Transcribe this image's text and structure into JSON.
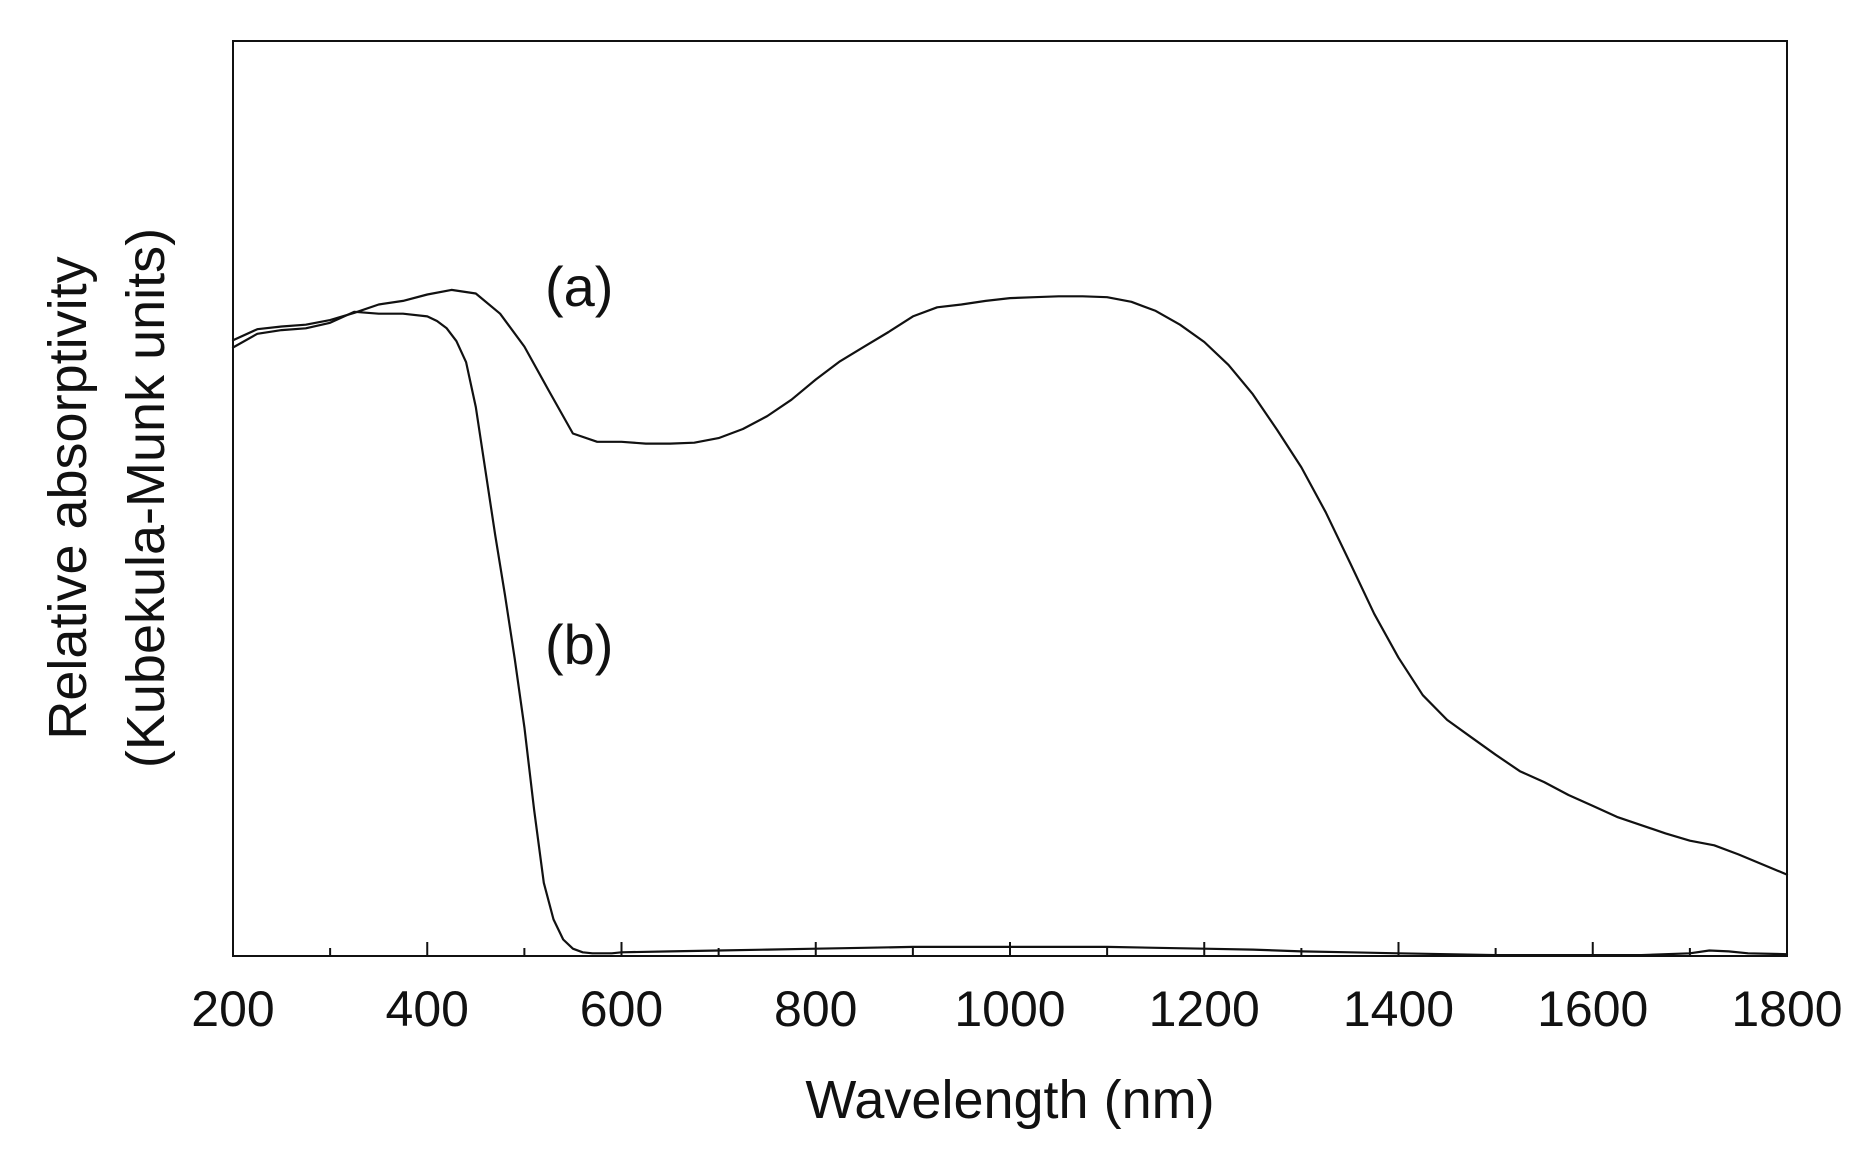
{
  "chart_data": {
    "type": "line",
    "title": "",
    "xlabel": "Wavelength (nm)",
    "ylabel_lines": [
      "Relative absorptivity",
      "(Kubekula-Munk units)"
    ],
    "xlim": [
      200,
      1800
    ],
    "ylim": [
      0,
      1
    ],
    "x_ticks": [
      200,
      400,
      600,
      800,
      1000,
      1200,
      1400,
      1600,
      1800
    ],
    "x_tick_labels": [
      "200",
      "400",
      "600",
      "800",
      "1000",
      "1200",
      "1400",
      "1600",
      "1800"
    ],
    "x_minor_ticks": [
      300,
      500,
      700,
      900,
      1100,
      1300,
      1500,
      1700
    ],
    "y_tick_labels_shown": false,
    "grid": false,
    "colors": {
      "line": "#111111",
      "axis": "#111111"
    },
    "series": [
      {
        "name": "(a)",
        "label": "(a)",
        "x": [
          200,
          225,
          250,
          275,
          300,
          325,
          350,
          375,
          400,
          425,
          450,
          475,
          500,
          525,
          550,
          575,
          600,
          625,
          650,
          675,
          700,
          725,
          750,
          775,
          800,
          825,
          850,
          875,
          900,
          925,
          950,
          975,
          1000,
          1025,
          1050,
          1075,
          1100,
          1125,
          1150,
          1175,
          1200,
          1225,
          1250,
          1275,
          1300,
          1325,
          1350,
          1375,
          1400,
          1425,
          1450,
          1475,
          1500,
          1525,
          1550,
          1575,
          1600,
          1625,
          1650,
          1675,
          1700,
          1725,
          1750,
          1775,
          1800
        ],
        "y": [
          0.673,
          0.685,
          0.688,
          0.69,
          0.695,
          0.703,
          0.712,
          0.716,
          0.723,
          0.728,
          0.724,
          0.702,
          0.666,
          0.618,
          0.571,
          0.562,
          0.562,
          0.56,
          0.56,
          0.561,
          0.566,
          0.576,
          0.59,
          0.608,
          0.63,
          0.65,
          0.666,
          0.682,
          0.699,
          0.709,
          0.712,
          0.716,
          0.719,
          0.72,
          0.721,
          0.721,
          0.72,
          0.715,
          0.705,
          0.69,
          0.671,
          0.646,
          0.614,
          0.575,
          0.534,
          0.485,
          0.43,
          0.374,
          0.326,
          0.285,
          0.258,
          0.239,
          0.22,
          0.202,
          0.19,
          0.176,
          0.164,
          0.152,
          0.143,
          0.134,
          0.126,
          0.121,
          0.111,
          0.1,
          0.089
        ]
      },
      {
        "name": "(b)",
        "label": "(b)",
        "x": [
          200,
          225,
          250,
          275,
          300,
          325,
          350,
          375,
          400,
          410,
          420,
          430,
          440,
          450,
          460,
          470,
          480,
          490,
          500,
          510,
          520,
          530,
          540,
          550,
          560,
          570,
          580,
          590,
          600,
          650,
          700,
          750,
          800,
          850,
          900,
          950,
          1000,
          1050,
          1100,
          1150,
          1200,
          1250,
          1300,
          1350,
          1400,
          1450,
          1500,
          1550,
          1600,
          1650,
          1700,
          1720,
          1740,
          1760,
          1800
        ],
        "y": [
          0.665,
          0.68,
          0.684,
          0.686,
          0.692,
          0.704,
          0.702,
          0.702,
          0.699,
          0.694,
          0.686,
          0.672,
          0.649,
          0.6,
          0.53,
          0.46,
          0.395,
          0.325,
          0.25,
          0.16,
          0.08,
          0.04,
          0.018,
          0.008,
          0.004,
          0.003,
          0.003,
          0.003,
          0.004,
          0.005,
          0.006,
          0.007,
          0.008,
          0.009,
          0.01,
          0.01,
          0.01,
          0.01,
          0.01,
          0.009,
          0.008,
          0.007,
          0.005,
          0.004,
          0.003,
          0.002,
          0.001,
          0.001,
          0.001,
          0.001,
          0.003,
          0.006,
          0.005,
          0.003,
          0.002
        ]
      }
    ]
  }
}
